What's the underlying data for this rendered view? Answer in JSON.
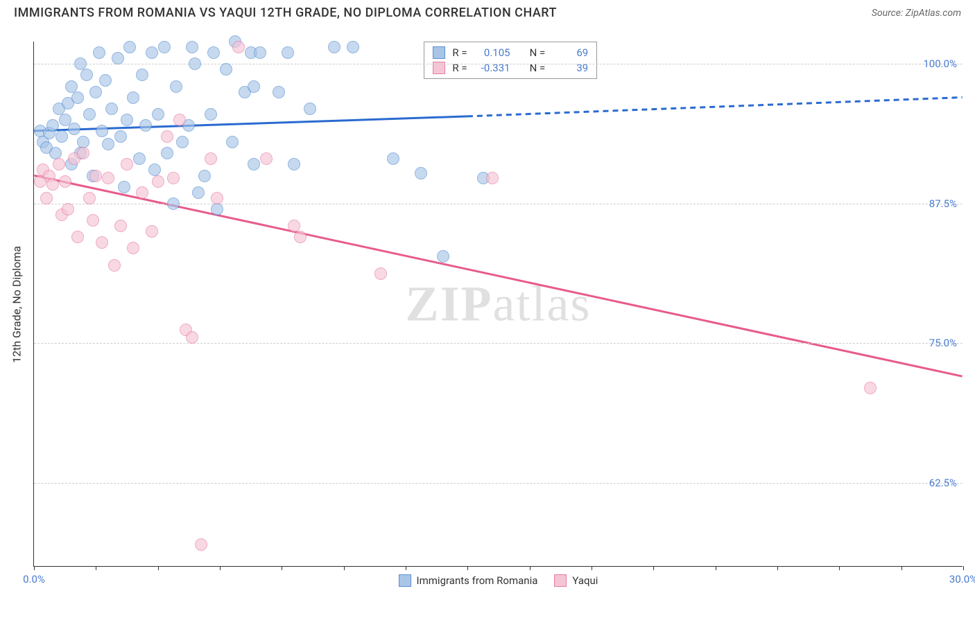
{
  "header": {
    "title": "IMMIGRANTS FROM ROMANIA VS YAQUI 12TH GRADE, NO DIPLOMA CORRELATION CHART",
    "source": "Source: ZipAtlas.com"
  },
  "chart": {
    "type": "scatter",
    "ylabel": "12th Grade, No Diploma",
    "background_color": "#ffffff",
    "grid_color": "#cccccc",
    "axis_color": "#333333",
    "tick_label_color": "#4a7bd0",
    "xlim": [
      0,
      30
    ],
    "ylim": [
      55,
      102
    ],
    "xtick_step": 2,
    "xtick_labels": {
      "0": "0.0%",
      "30": "30.0%"
    },
    "ytick_labels": {
      "62.5": "62.5%",
      "75": "75.0%",
      "87.5": "87.5%",
      "100": "100.0%"
    },
    "series": [
      {
        "name": "Immigrants from Romania",
        "color_fill": "#a8c5e8",
        "color_stroke": "#5a8fd0",
        "marker": "circle",
        "marker_size": 18,
        "r_value": "0.105",
        "n_value": "69",
        "trend": {
          "x1": 0,
          "y1": 94,
          "x2_solid": 14,
          "y2_solid": 95.3,
          "x2_dash": 30,
          "y2_dash": 97,
          "color": "#2a6ad0",
          "width": 3
        },
        "points": [
          [
            0.2,
            94
          ],
          [
            0.3,
            93
          ],
          [
            0.4,
            92.5
          ],
          [
            0.5,
            93.8
          ],
          [
            0.6,
            94.5
          ],
          [
            0.7,
            92
          ],
          [
            0.8,
            96
          ],
          [
            0.9,
            93.5
          ],
          [
            1.0,
            95
          ],
          [
            1.1,
            96.5
          ],
          [
            1.2,
            91
          ],
          [
            1.2,
            98
          ],
          [
            1.3,
            94.2
          ],
          [
            1.4,
            97
          ],
          [
            1.5,
            100
          ],
          [
            1.5,
            92
          ],
          [
            1.6,
            93
          ],
          [
            1.7,
            99
          ],
          [
            1.8,
            95.5
          ],
          [
            1.9,
            90
          ],
          [
            2.0,
            97.5
          ],
          [
            2.1,
            101
          ],
          [
            2.2,
            94
          ],
          [
            2.3,
            98.5
          ],
          [
            2.4,
            92.8
          ],
          [
            2.5,
            96
          ],
          [
            2.7,
            100.5
          ],
          [
            2.8,
            93.5
          ],
          [
            2.9,
            89
          ],
          [
            3.0,
            95
          ],
          [
            3.1,
            101.5
          ],
          [
            3.2,
            97
          ],
          [
            3.4,
            91.5
          ],
          [
            3.5,
            99
          ],
          [
            3.6,
            94.5
          ],
          [
            3.8,
            101
          ],
          [
            3.9,
            90.5
          ],
          [
            4.0,
            95.5
          ],
          [
            4.2,
            101.5
          ],
          [
            4.3,
            92
          ],
          [
            4.5,
            87.5
          ],
          [
            4.6,
            98
          ],
          [
            4.8,
            93
          ],
          [
            5.0,
            94.5
          ],
          [
            5.1,
            101.5
          ],
          [
            5.2,
            100
          ],
          [
            5.3,
            88.5
          ],
          [
            5.5,
            90
          ],
          [
            5.7,
            95.5
          ],
          [
            5.8,
            101
          ],
          [
            5.9,
            87
          ],
          [
            6.2,
            99.5
          ],
          [
            6.4,
            93
          ],
          [
            6.5,
            102
          ],
          [
            6.8,
            97.5
          ],
          [
            7.0,
            101
          ],
          [
            7.1,
            91
          ],
          [
            7.1,
            98
          ],
          [
            7.3,
            101
          ],
          [
            7.9,
            97.5
          ],
          [
            8.2,
            101
          ],
          [
            8.4,
            91
          ],
          [
            8.9,
            96
          ],
          [
            9.7,
            101.5
          ],
          [
            10.3,
            101.5
          ],
          [
            11.6,
            91.5
          ],
          [
            12.5,
            90.2
          ],
          [
            13.2,
            82.8
          ],
          [
            14.5,
            89.8
          ]
        ]
      },
      {
        "name": "Yaqui",
        "color_fill": "#f5c5d5",
        "color_stroke": "#e87ba5",
        "marker": "circle",
        "marker_size": 18,
        "r_value": "-0.331",
        "n_value": "39",
        "trend": {
          "x1": 0,
          "y1": 90,
          "x2_solid": 30,
          "y2_solid": 72,
          "color": "#e85a8a",
          "width": 3
        },
        "points": [
          [
            0.2,
            89.5
          ],
          [
            0.3,
            90.5
          ],
          [
            0.4,
            88
          ],
          [
            0.5,
            90
          ],
          [
            0.6,
            89.2
          ],
          [
            0.8,
            91
          ],
          [
            0.9,
            86.5
          ],
          [
            1.0,
            89.5
          ],
          [
            1.1,
            87
          ],
          [
            1.3,
            91.5
          ],
          [
            1.4,
            84.5
          ],
          [
            1.6,
            92
          ],
          [
            1.8,
            88
          ],
          [
            1.9,
            86
          ],
          [
            2.0,
            90
          ],
          [
            2.2,
            84
          ],
          [
            2.4,
            89.8
          ],
          [
            2.6,
            82
          ],
          [
            2.8,
            85.5
          ],
          [
            3.0,
            91
          ],
          [
            3.2,
            83.5
          ],
          [
            3.5,
            88.5
          ],
          [
            3.8,
            85
          ],
          [
            4.0,
            89.5
          ],
          [
            4.3,
            93.5
          ],
          [
            4.5,
            89.8
          ],
          [
            4.7,
            95
          ],
          [
            4.9,
            76.2
          ],
          [
            5.1,
            75.5
          ],
          [
            5.4,
            57
          ],
          [
            5.7,
            91.5
          ],
          [
            5.9,
            88
          ],
          [
            6.6,
            101.5
          ],
          [
            7.5,
            91.5
          ],
          [
            8.4,
            85.5
          ],
          [
            8.6,
            84.5
          ],
          [
            11.2,
            81.2
          ],
          [
            14.8,
            89.8
          ],
          [
            27,
            71
          ]
        ]
      }
    ],
    "legend_stats": {
      "r_label": "R =",
      "n_label": "N ="
    },
    "watermark": {
      "zip": "ZIP",
      "atlas": "atlas"
    }
  }
}
